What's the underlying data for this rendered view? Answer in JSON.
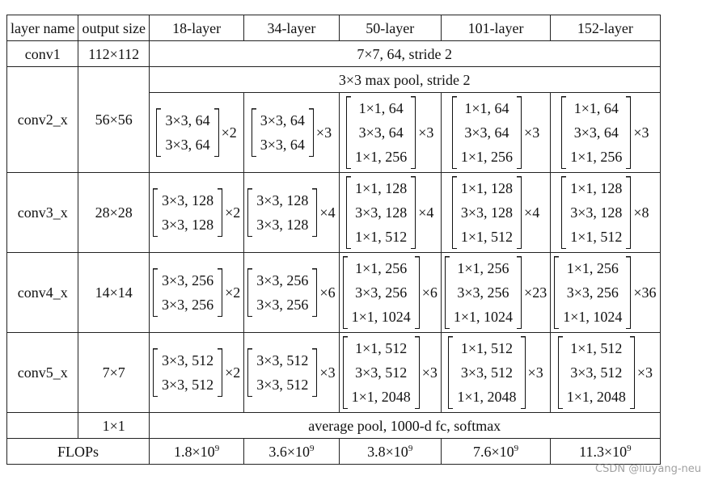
{
  "table": {
    "header": [
      "layer name",
      "output size",
      "18-layer",
      "34-layer",
      "50-layer",
      "101-layer",
      "152-layer"
    ],
    "rows": [
      {
        "name": "conv1",
        "size": "112×112",
        "span": "7×7, 64, stride 2"
      },
      {
        "name": "conv2_x",
        "size": "56×56",
        "span": "3×3 max pool, stride 2",
        "blocks": [
          {
            "lines": [
              "3×3, 64",
              "3×3, 64"
            ],
            "times": "×2"
          },
          {
            "lines": [
              "3×3, 64",
              "3×3, 64"
            ],
            "times": "×3"
          },
          {
            "lines": [
              "1×1, 64",
              "3×3, 64",
              "1×1, 256"
            ],
            "times": "×3"
          },
          {
            "lines": [
              "1×1, 64",
              "3×3, 64",
              "1×1, 256"
            ],
            "times": "×3"
          },
          {
            "lines": [
              "1×1, 64",
              "3×3, 64",
              "1×1, 256"
            ],
            "times": "×3"
          }
        ]
      },
      {
        "name": "conv3_x",
        "size": "28×28",
        "blocks": [
          {
            "lines": [
              "3×3, 128",
              "3×3, 128"
            ],
            "times": "×2"
          },
          {
            "lines": [
              "3×3, 128",
              "3×3, 128"
            ],
            "times": "×4"
          },
          {
            "lines": [
              "1×1, 128",
              "3×3, 128",
              "1×1, 512"
            ],
            "times": "×4"
          },
          {
            "lines": [
              "1×1, 128",
              "3×3, 128",
              "1×1, 512"
            ],
            "times": "×4"
          },
          {
            "lines": [
              "1×1, 128",
              "3×3, 128",
              "1×1, 512"
            ],
            "times": "×8"
          }
        ]
      },
      {
        "name": "conv4_x",
        "size": "14×14",
        "blocks": [
          {
            "lines": [
              "3×3, 256",
              "3×3, 256"
            ],
            "times": "×2"
          },
          {
            "lines": [
              "3×3, 256",
              "3×3, 256"
            ],
            "times": "×6"
          },
          {
            "lines": [
              "1×1, 256",
              "3×3, 256",
              "1×1, 1024"
            ],
            "times": "×6"
          },
          {
            "lines": [
              "1×1, 256",
              "3×3, 256",
              "1×1, 1024"
            ],
            "times": "×23"
          },
          {
            "lines": [
              "1×1, 256",
              "3×3, 256",
              "1×1, 1024"
            ],
            "times": "×36"
          }
        ]
      },
      {
        "name": "conv5_x",
        "size": "7×7",
        "blocks": [
          {
            "lines": [
              "3×3, 512",
              "3×3, 512"
            ],
            "times": "×2"
          },
          {
            "lines": [
              "3×3, 512",
              "3×3, 512"
            ],
            "times": "×3"
          },
          {
            "lines": [
              "1×1, 512",
              "3×3, 512",
              "1×1, 2048"
            ],
            "times": "×3"
          },
          {
            "lines": [
              "1×1, 512",
              "3×3, 512",
              "1×1, 2048"
            ],
            "times": "×3"
          },
          {
            "lines": [
              "1×1, 512",
              "3×3, 512",
              "1×1, 2048"
            ],
            "times": "×3"
          }
        ]
      },
      {
        "size": "1×1",
        "span": "average pool, 1000-d fc, softmax"
      },
      {
        "name": "FLOPs",
        "flops": [
          {
            "base": "1.8×10",
            "exp": "9"
          },
          {
            "base": "3.6×10",
            "exp": "9"
          },
          {
            "base": "3.8×10",
            "exp": "9"
          },
          {
            "base": "7.6×10",
            "exp": "9"
          },
          {
            "base": "11.3×10",
            "exp": "9"
          }
        ]
      }
    ]
  },
  "watermark": "CSDN @liuyang-neu"
}
